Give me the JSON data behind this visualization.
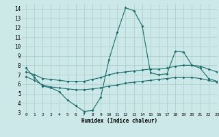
{
  "xlabel": "Humidex (Indice chaleur)",
  "bg_color": "#cce8e8",
  "grid_color": "#aacccc",
  "line_color": "#1a6b6b",
  "xlim": [
    -0.5,
    23
  ],
  "ylim": [
    3,
    14.5
  ],
  "xticks": [
    0,
    1,
    2,
    3,
    4,
    5,
    6,
    7,
    8,
    9,
    10,
    11,
    12,
    13,
    14,
    15,
    16,
    17,
    18,
    19,
    20,
    21,
    22,
    23
  ],
  "yticks": [
    3,
    4,
    5,
    6,
    7,
    8,
    9,
    10,
    11,
    12,
    13,
    14
  ],
  "line1_x": [
    0,
    1,
    2,
    3,
    4,
    5,
    6,
    7,
    8,
    9,
    10,
    11,
    12,
    13,
    14,
    15,
    16,
    17,
    18,
    19,
    20,
    21,
    22,
    23
  ],
  "line1_y": [
    7.7,
    6.7,
    5.8,
    5.6,
    5.2,
    4.3,
    3.7,
    3.1,
    3.2,
    4.6,
    8.6,
    11.5,
    14.1,
    13.8,
    12.2,
    7.2,
    7.0,
    7.1,
    9.5,
    9.4,
    8.0,
    7.7,
    6.6,
    6.3
  ],
  "line2_x": [
    0,
    1,
    2,
    3,
    4,
    5,
    6,
    7,
    8,
    9,
    10,
    11,
    12,
    13,
    14,
    15,
    16,
    17,
    18,
    19,
    20,
    21,
    22,
    23
  ],
  "line2_y": [
    7.3,
    7.0,
    6.6,
    6.5,
    6.4,
    6.3,
    6.3,
    6.3,
    6.5,
    6.7,
    7.0,
    7.2,
    7.3,
    7.4,
    7.5,
    7.6,
    7.6,
    7.7,
    7.9,
    8.0,
    8.0,
    7.9,
    7.6,
    7.3
  ],
  "line3_x": [
    0,
    1,
    2,
    3,
    4,
    5,
    6,
    7,
    8,
    9,
    10,
    11,
    12,
    13,
    14,
    15,
    16,
    17,
    18,
    19,
    20,
    21,
    22,
    23
  ],
  "line3_y": [
    6.8,
    6.4,
    5.9,
    5.7,
    5.6,
    5.5,
    5.4,
    5.4,
    5.5,
    5.6,
    5.8,
    5.9,
    6.1,
    6.2,
    6.3,
    6.4,
    6.5,
    6.6,
    6.7,
    6.7,
    6.7,
    6.6,
    6.4,
    6.2
  ]
}
